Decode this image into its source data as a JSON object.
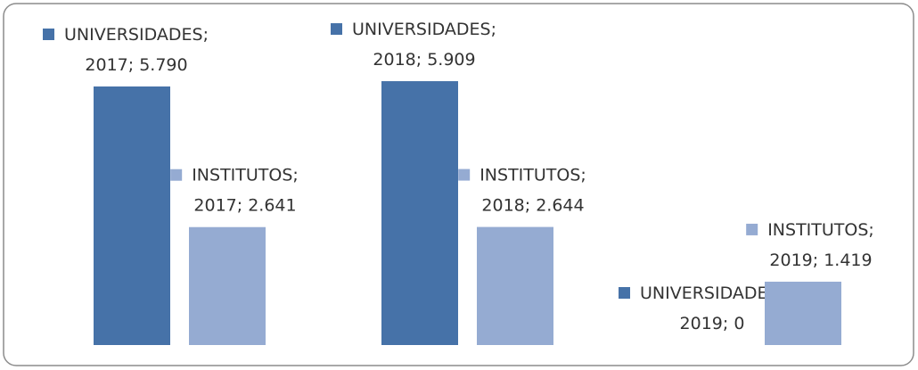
{
  "chart_data": {
    "type": "bar",
    "categories": [
      "2017",
      "2018",
      "2019"
    ],
    "series": [
      {
        "name": "UNIVERSIDADES",
        "color": "#4672a8",
        "values": [
          5790,
          5909,
          0
        ],
        "value_labels": [
          "UNIVERSIDADES; 2017; 5.790",
          "UNIVERSIDADES; 2018; 5.909",
          "UNIVERSIDADES; 2019; 0"
        ]
      },
      {
        "name": "INSTITUTOS",
        "color": "#95abd2",
        "values": [
          2641,
          2644,
          1419
        ],
        "value_labels": [
          "INSTITUTOS; 2017; 2.641",
          "INSTITUTOS; 2018; 2.644",
          "INSTITUTOS; 2019; 1.419"
        ]
      }
    ]
  }
}
